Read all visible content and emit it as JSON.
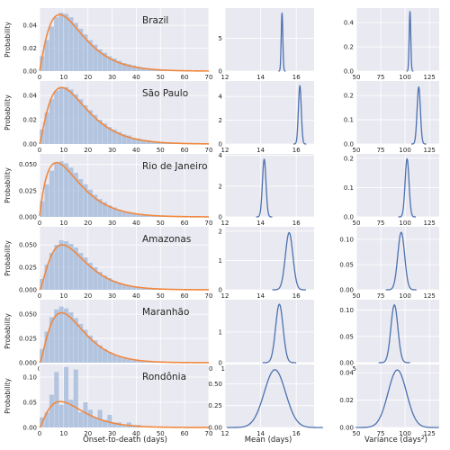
{
  "figure": {
    "x_labels": {
      "hist": "Onset-to-death (days)",
      "mean": "Mean (days)",
      "variance_base": "Variance (days",
      "variance_sup": "2",
      "variance_close": ")"
    },
    "ylabel": "Probability"
  },
  "colors": {
    "panel_bg": "#e9e9f1",
    "grid": "#ffffff",
    "bar": "#a9bddc",
    "fit_curve": "#f0883e",
    "density": "#4c72b0"
  },
  "chart_data": [
    {
      "type": "bar",
      "region": "Brazil",
      "x": [
        1,
        3,
        5,
        7,
        9,
        11,
        13,
        15,
        17,
        19,
        21,
        23,
        25,
        27,
        29,
        31,
        33,
        35,
        37,
        39,
        41,
        43,
        45,
        47,
        49,
        51,
        53,
        55,
        57,
        59,
        61,
        63,
        65
      ],
      "values": [
        0.013,
        0.027,
        0.039,
        0.047,
        0.051,
        0.05,
        0.047,
        0.042,
        0.037,
        0.032,
        0.027,
        0.023,
        0.019,
        0.016,
        0.013,
        0.011,
        0.009,
        0.007,
        0.006,
        0.005,
        0.004,
        0.003,
        0.0025,
        0.002,
        0.0015,
        0.0012,
        0.001,
        0.0008,
        0.0006,
        0.0005,
        0.0004,
        0.0003,
        0.0002
      ],
      "fit": {
        "distribution": "gamma",
        "mean": 15.2,
        "variance": 105
      },
      "xlim": [
        0,
        70
      ],
      "ylim": [
        0,
        0.055
      ],
      "xticks": [
        0,
        10,
        20,
        30,
        40,
        50,
        60,
        70
      ],
      "yticks": [
        0,
        0.02,
        0.04
      ],
      "ytick_labels": [
        "0.00",
        "0.02",
        "0.04"
      ]
    },
    {
      "type": "line",
      "region": "Brazil",
      "variable": "mean",
      "x_center": 15.2,
      "sd": 0.045,
      "peak": 8.8,
      "xlim": [
        12,
        17
      ],
      "ylim": [
        0,
        9.6
      ],
      "xticks": [
        12,
        14,
        16
      ],
      "yticks": [
        0,
        5
      ],
      "ytick_labels": [
        "0",
        "5"
      ]
    },
    {
      "type": "line",
      "region": "Brazil",
      "variable": "variance",
      "x_center": 105,
      "sd": 0.8,
      "peak": 0.49,
      "xlim": [
        50,
        135
      ],
      "ylim": [
        0,
        0.52
      ],
      "xticks": [
        50,
        75,
        100,
        125
      ],
      "yticks": [
        0,
        0.2,
        0.4
      ],
      "ytick_labels": [
        "0.0",
        "0.2",
        "0.4"
      ]
    },
    {
      "type": "bar",
      "region": "São Paulo",
      "x": [
        1,
        3,
        5,
        7,
        9,
        11,
        13,
        15,
        17,
        19,
        21,
        23,
        25,
        27,
        29,
        31,
        33,
        35,
        37,
        39,
        41,
        43,
        45,
        47,
        49,
        51,
        53,
        55,
        57,
        59,
        61,
        63,
        65
      ],
      "values": [
        0.012,
        0.026,
        0.037,
        0.044,
        0.047,
        0.047,
        0.045,
        0.041,
        0.037,
        0.032,
        0.028,
        0.024,
        0.02,
        0.017,
        0.014,
        0.012,
        0.01,
        0.008,
        0.007,
        0.005,
        0.0045,
        0.0035,
        0.003,
        0.0025,
        0.002,
        0.0015,
        0.0012,
        0.001,
        0.0008,
        0.0006,
        0.0005,
        0.0004,
        0.0003
      ],
      "fit": {
        "distribution": "gamma",
        "mean": 16.2,
        "variance": 115
      },
      "xlim": [
        0,
        70
      ],
      "ylim": [
        0,
        0.052
      ],
      "xticks": [
        0,
        10,
        20,
        30,
        40,
        50,
        60,
        70
      ],
      "yticks": [
        0,
        0.02,
        0.04
      ],
      "ytick_labels": [
        "0.00",
        "0.02",
        "0.04"
      ]
    },
    {
      "type": "line",
      "region": "São Paulo",
      "variable": "mean",
      "x_center": 16.2,
      "sd": 0.08,
      "peak": 4.9,
      "xlim": [
        12,
        17
      ],
      "ylim": [
        0,
        5.3
      ],
      "xticks": [
        12,
        14,
        16
      ],
      "yticks": [
        0,
        2,
        4
      ],
      "ytick_labels": [
        "0",
        "2",
        "4"
      ]
    },
    {
      "type": "line",
      "region": "São Paulo",
      "variable": "variance",
      "x_center": 114,
      "sd": 1.7,
      "peak": 0.235,
      "xlim": [
        50,
        135
      ],
      "ylim": [
        0,
        0.26
      ],
      "xticks": [
        50,
        75,
        100,
        125
      ],
      "yticks": [
        0,
        0.1,
        0.2
      ],
      "ytick_labels": [
        "0.0",
        "0.1",
        "0.2"
      ]
    },
    {
      "type": "bar",
      "region": "Rio de Janeiro",
      "x": [
        1,
        3,
        5,
        7,
        9,
        11,
        13,
        15,
        17,
        19,
        21,
        23,
        25,
        27,
        29,
        31,
        33,
        35,
        37,
        39,
        41,
        43,
        45,
        47,
        49,
        51,
        53,
        55,
        57,
        59,
        61
      ],
      "values": [
        0.015,
        0.031,
        0.044,
        0.051,
        0.053,
        0.051,
        0.047,
        0.042,
        0.036,
        0.031,
        0.026,
        0.021,
        0.017,
        0.014,
        0.011,
        0.009,
        0.007,
        0.0055,
        0.0045,
        0.0035,
        0.0028,
        0.002,
        0.0016,
        0.0012,
        0.001,
        0.0008,
        0.0006,
        0.0005,
        0.0004,
        0.0003,
        0.0002
      ],
      "fit": {
        "distribution": "gamma",
        "mean": 14.2,
        "variance": 102
      },
      "xlim": [
        0,
        70
      ],
      "ylim": [
        0,
        0.06
      ],
      "xticks": [
        0,
        10,
        20,
        30,
        40,
        50,
        60,
        70
      ],
      "yticks": [
        0,
        0.025,
        0.05
      ],
      "ytick_labels": [
        "0.000",
        "0.025",
        "0.050"
      ]
    },
    {
      "type": "line",
      "region": "Rio de Janeiro",
      "variable": "mean",
      "x_center": 14.2,
      "sd": 0.1,
      "peak": 3.75,
      "xlim": [
        12,
        17
      ],
      "ylim": [
        0,
        4.1
      ],
      "xticks": [
        12,
        14,
        16
      ],
      "yticks": [
        0,
        2,
        4
      ],
      "ytick_labels": [
        "0",
        "2",
        "4"
      ]
    },
    {
      "type": "line",
      "region": "Rio de Janeiro",
      "variable": "variance",
      "x_center": 102,
      "sd": 2.0,
      "peak": 0.198,
      "xlim": [
        50,
        135
      ],
      "ylim": [
        0,
        0.215
      ],
      "xticks": [
        50,
        75,
        100,
        125
      ],
      "yticks": [
        0,
        0.1,
        0.2
      ],
      "ytick_labels": [
        "0.0",
        "0.1",
        "0.2"
      ]
    },
    {
      "type": "bar",
      "region": "Amazonas",
      "x": [
        1,
        3,
        5,
        7,
        9,
        11,
        13,
        15,
        17,
        19,
        21,
        23,
        25,
        27,
        29,
        31,
        33,
        35,
        37,
        39,
        41,
        43,
        45,
        47,
        49,
        51,
        53,
        55
      ],
      "values": [
        0.012,
        0.028,
        0.041,
        0.05,
        0.055,
        0.054,
        0.051,
        0.047,
        0.041,
        0.036,
        0.03,
        0.025,
        0.02,
        0.016,
        0.013,
        0.01,
        0.008,
        0.006,
        0.0045,
        0.0035,
        0.0025,
        0.002,
        0.0015,
        0.001,
        0.0008,
        0.0006,
        0.0004,
        0.0003
      ],
      "fit": {
        "distribution": "gamma",
        "mean": 15.5,
        "variance": 95
      },
      "xlim": [
        0,
        70
      ],
      "ylim": [
        0,
        0.07
      ],
      "xticks": [
        0,
        10,
        20,
        30,
        40,
        50,
        60,
        70
      ],
      "yticks": [
        0,
        0.025,
        0.05
      ],
      "ytick_labels": [
        "0.000",
        "0.025",
        "0.050"
      ]
    },
    {
      "type": "line",
      "region": "Amazonas",
      "variable": "mean",
      "x_center": 15.6,
      "sd": 0.21,
      "peak": 1.95,
      "xlim": [
        12,
        17
      ],
      "ylim": [
        0,
        2.15
      ],
      "xticks": [
        12,
        14,
        16
      ],
      "yticks": [
        0,
        1,
        2
      ],
      "ytick_labels": [
        "0",
        "1",
        "2"
      ]
    },
    {
      "type": "line",
      "region": "Amazonas",
      "variable": "variance",
      "x_center": 96,
      "sd": 3.5,
      "peak": 0.114,
      "xlim": [
        50,
        135
      ],
      "ylim": [
        0,
        0.125
      ],
      "xticks": [
        50,
        75,
        100,
        125
      ],
      "yticks": [
        0,
        0.05,
        0.1
      ],
      "ytick_labels": [
        "0.00",
        "0.05",
        "0.10"
      ]
    },
    {
      "type": "bar",
      "region": "Maranhão",
      "x": [
        1,
        3,
        5,
        7,
        9,
        11,
        13,
        15,
        17,
        19,
        21,
        23,
        25,
        27,
        29,
        31,
        33,
        35,
        37,
        39,
        41,
        43,
        45,
        47,
        49
      ],
      "values": [
        0.014,
        0.032,
        0.047,
        0.055,
        0.058,
        0.056,
        0.052,
        0.046,
        0.04,
        0.034,
        0.028,
        0.023,
        0.018,
        0.014,
        0.011,
        0.008,
        0.006,
        0.0045,
        0.0035,
        0.0025,
        0.0018,
        0.0013,
        0.001,
        0.0007,
        0.0005
      ],
      "fit": {
        "distribution": "gamma",
        "mean": 15.0,
        "variance": 89
      },
      "xlim": [
        0,
        70
      ],
      "ylim": [
        0,
        0.065
      ],
      "xticks": [
        0,
        10,
        20,
        30,
        40,
        50,
        60,
        70
      ],
      "yticks": [
        0,
        0.025,
        0.05
      ],
      "ytick_labels": [
        "0.000",
        "0.025",
        "0.050"
      ]
    },
    {
      "type": "line",
      "region": "Maranhão",
      "variable": "mean",
      "x_center": 15.05,
      "sd": 0.21,
      "peak": 1.9,
      "xlim": [
        12,
        17
      ],
      "ylim": [
        0,
        2.05
      ],
      "xticks": [
        12,
        14,
        16
      ],
      "yticks": [
        0,
        1
      ],
      "ytick_labels": [
        "0",
        "1"
      ]
    },
    {
      "type": "line",
      "region": "Maranhão",
      "variable": "variance",
      "x_center": 89,
      "sd": 3.6,
      "peak": 0.11,
      "xlim": [
        50,
        135
      ],
      "ylim": [
        0,
        0.12
      ],
      "xticks": [
        50,
        75,
        100,
        125
      ],
      "yticks": [
        0,
        0.05,
        0.1
      ],
      "ytick_labels": [
        "0.00",
        "0.05",
        "0.10"
      ]
    },
    {
      "type": "bar",
      "region": "Rondônia",
      "x": [
        1,
        3,
        5,
        7,
        9,
        11,
        13,
        15,
        17,
        19,
        21,
        23,
        25,
        27,
        29,
        31,
        33,
        35,
        37,
        39,
        41
      ],
      "values": [
        0.02,
        0.03,
        0.065,
        0.11,
        0.045,
        0.12,
        0.055,
        0.115,
        0.03,
        0.05,
        0.035,
        0.02,
        0.035,
        0.015,
        0.025,
        0.01,
        0.01,
        0.005,
        0.01,
        0.005,
        0.005
      ],
      "fit": {
        "distribution": "gamma",
        "mean": 14.8,
        "variance": 92
      },
      "xlim": [
        0,
        70
      ],
      "ylim": [
        0,
        0.125
      ],
      "xticks": [
        0,
        10,
        20,
        30,
        40,
        50,
        60,
        70
      ],
      "yticks": [
        0,
        0.05,
        0.1
      ],
      "ytick_labels": [
        "0.00",
        "0.05",
        "0.10"
      ]
    },
    {
      "type": "line",
      "region": "Rondônia",
      "variable": "mean",
      "x_center": 14.8,
      "sd": 0.6,
      "peak": 0.66,
      "xlim": [
        12,
        17
      ],
      "ylim": [
        0,
        0.72
      ],
      "xticks": [
        12,
        14,
        16
      ],
      "yticks": [
        0,
        0.25,
        0.5
      ],
      "ytick_labels": [
        "0.00",
        "0.25",
        "0.50"
      ]
    },
    {
      "type": "line",
      "region": "Rondônia",
      "variable": "variance",
      "x_center": 92,
      "sd": 9.5,
      "peak": 0.042,
      "xlim": [
        50,
        135
      ],
      "ylim": [
        0,
        0.046
      ],
      "xticks": [
        50,
        75,
        100,
        125
      ],
      "yticks": [
        0,
        0.02,
        0.04
      ],
      "ytick_labels": [
        "0.00",
        "0.02",
        "0.04"
      ]
    }
  ]
}
